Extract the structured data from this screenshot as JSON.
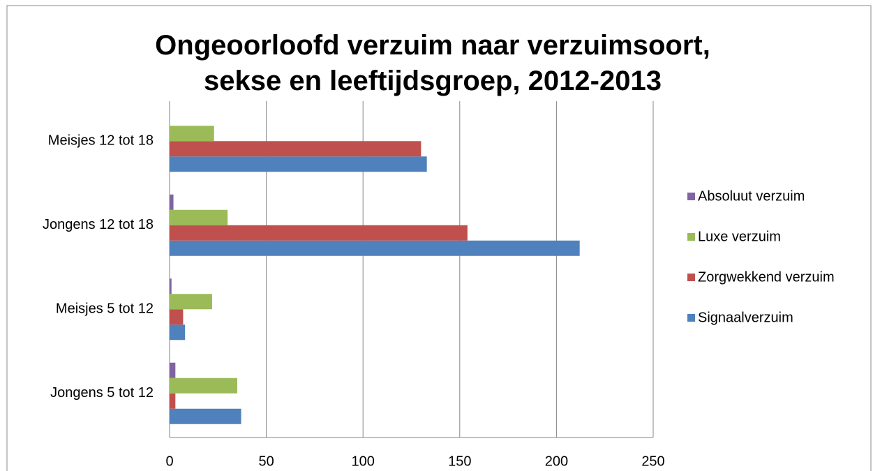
{
  "chart_data": {
    "type": "bar",
    "orientation": "horizontal",
    "title": "Ongeoorloofd verzuim naar verzuimsoort, sekse en leeftijdsgroep, 2012-2013",
    "categories": [
      "Jongens 5 tot 12",
      "Meisjes 5 tot 12",
      "Jongens 12 tot 18",
      "Meisjes 12 tot 18"
    ],
    "series": [
      {
        "name": "Signaalverzuim",
        "color": "#4f81bd",
        "values": [
          37,
          8,
          212,
          133
        ]
      },
      {
        "name": "Zorgwekkend verzuim",
        "color": "#c0504d",
        "values": [
          3,
          7,
          154,
          130
        ]
      },
      {
        "name": "Luxe verzuim",
        "color": "#9bbb59",
        "values": [
          35,
          22,
          30,
          23
        ]
      },
      {
        "name": "Absoluut verzuim",
        "color": "#8064a2",
        "values": [
          3,
          1,
          2,
          0
        ]
      }
    ],
    "xlim": [
      0,
      250
    ],
    "xticks": [
      0,
      50,
      100,
      150,
      200,
      250
    ],
    "grid": true
  }
}
